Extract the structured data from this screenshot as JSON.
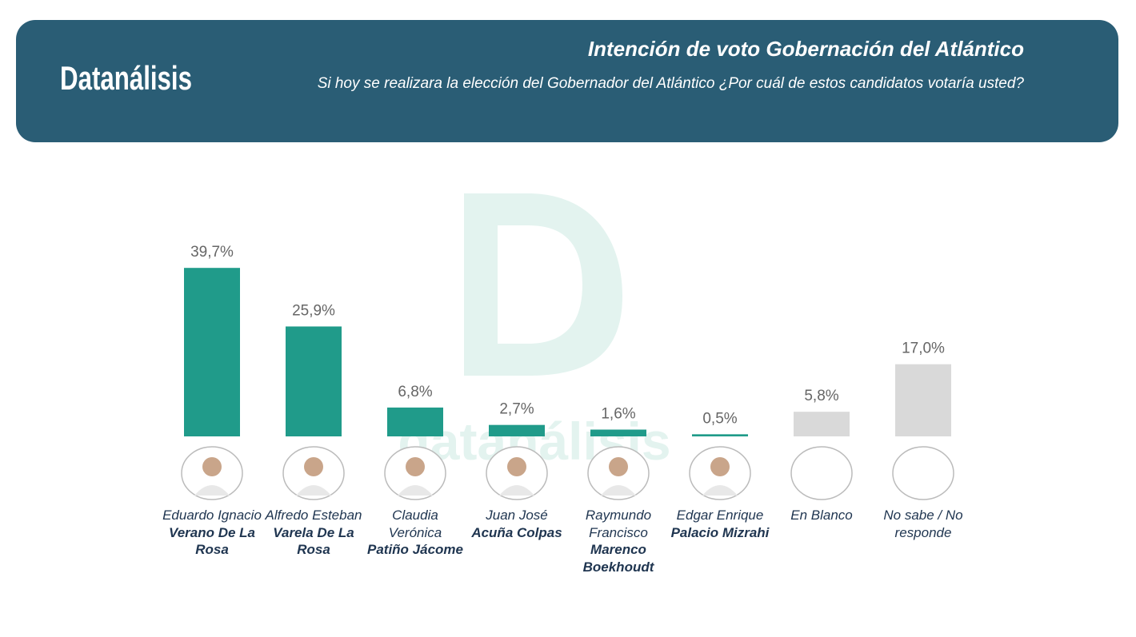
{
  "brand": "Datanálisis",
  "watermark": "datanálisis",
  "chart_data": {
    "type": "bar",
    "title": "Intención de voto Gobernación del Atlántico",
    "subtitle": "Si hoy se realizara la elección del Gobernador del Atlántico ¿Por cuál de estos candidatos votaría usted?",
    "categories": [
      "Eduardo Ignacio",
      "Alfredo Esteban",
      "Claudia Verónica",
      "Juan José",
      "Raymundo Francisco",
      "Edgar Enrique",
      "En Blanco",
      "No sabe / No responde"
    ],
    "surnames": [
      "Verano De La Rosa",
      "Varela De La Rosa",
      "Patiño Jácome",
      "Acuña Colpas",
      "Marenco Boekhoudt",
      "Palacio Mizrahi",
      null,
      null
    ],
    "values": [
      39.7,
      25.9,
      6.8,
      2.7,
      1.6,
      0.5,
      5.8,
      17.0
    ],
    "value_labels": [
      "39,7%",
      "25,9%",
      "6,8%",
      "2,7%",
      "1,6%",
      "0,5%",
      "5,8%",
      "17,0%"
    ],
    "colors": [
      "#209b8a",
      "#209b8a",
      "#209b8a",
      "#209b8a",
      "#209b8a",
      "#209b8a",
      "#d9d9d9",
      "#d9d9d9"
    ]
  }
}
